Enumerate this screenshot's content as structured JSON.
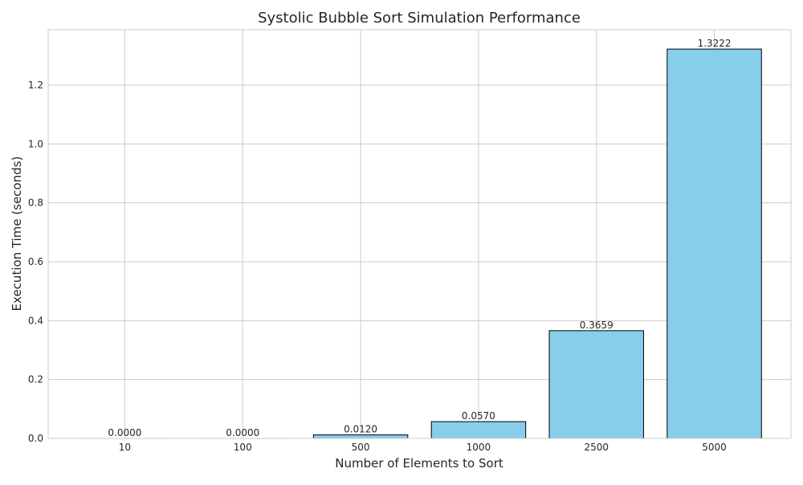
{
  "chart_data": {
    "type": "bar",
    "title": "Systolic Bubble Sort Simulation Performance",
    "xlabel": "Number of Elements to Sort",
    "ylabel": "Execution Time (seconds)",
    "categories": [
      "10",
      "100",
      "500",
      "1000",
      "2500",
      "5000"
    ],
    "values": [
      0.0,
      0.0,
      0.012,
      0.057,
      0.3659,
      1.3222
    ],
    "data_labels": [
      "0.0000",
      "0.0000",
      "0.0120",
      "0.0570",
      "0.3659",
      "1.3222"
    ],
    "ylim": [
      0,
      1.388
    ],
    "yticks": [
      0.0,
      0.2,
      0.4,
      0.6,
      0.8,
      1.0,
      1.2
    ],
    "ytick_labels": [
      "0.0",
      "0.2",
      "0.4",
      "0.6",
      "0.8",
      "1.0",
      "1.2"
    ],
    "bar_color": "#87ceeb",
    "bar_edge_color": "#000000",
    "grid": true,
    "legend": false
  }
}
